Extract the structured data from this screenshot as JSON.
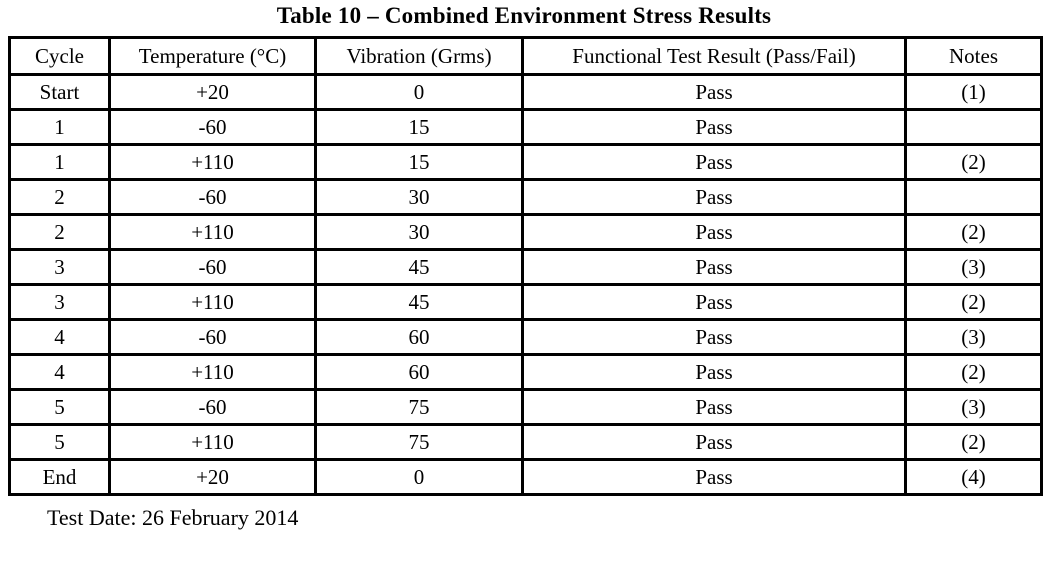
{
  "title": "Table 10 – Combined Environment Stress Results",
  "table": {
    "headers": [
      "Cycle",
      "Temperature (°C)",
      "Vibration (Grms)",
      "Functional Test Result (Pass/Fail)",
      "Notes"
    ],
    "rows": [
      {
        "cycle": "Start",
        "temperature": "+20",
        "vibration": "0",
        "result": "Pass",
        "notes": "(1)"
      },
      {
        "cycle": "1",
        "temperature": "-60",
        "vibration": "15",
        "result": "Pass",
        "notes": ""
      },
      {
        "cycle": "1",
        "temperature": "+110",
        "vibration": "15",
        "result": "Pass",
        "notes": "(2)"
      },
      {
        "cycle": "2",
        "temperature": "-60",
        "vibration": "30",
        "result": "Pass",
        "notes": ""
      },
      {
        "cycle": "2",
        "temperature": "+110",
        "vibration": "30",
        "result": "Pass",
        "notes": "(2)"
      },
      {
        "cycle": "3",
        "temperature": "-60",
        "vibration": "45",
        "result": "Pass",
        "notes": "(3)"
      },
      {
        "cycle": "3",
        "temperature": "+110",
        "vibration": "45",
        "result": "Pass",
        "notes": "(2)"
      },
      {
        "cycle": "4",
        "temperature": "-60",
        "vibration": "60",
        "result": "Pass",
        "notes": "(3)"
      },
      {
        "cycle": "4",
        "temperature": "+110",
        "vibration": "60",
        "result": "Pass",
        "notes": "(2)"
      },
      {
        "cycle": "5",
        "temperature": "-60",
        "vibration": "75",
        "result": "Pass",
        "notes": "(3)"
      },
      {
        "cycle": "5",
        "temperature": "+110",
        "vibration": "75",
        "result": "Pass",
        "notes": "(2)"
      },
      {
        "cycle": "End",
        "temperature": "+20",
        "vibration": "0",
        "result": "Pass",
        "notes": "(4)"
      }
    ]
  },
  "footer": {
    "test_date": "Test Date: 26 February 2014"
  },
  "colors": {
    "text": "#000000",
    "border": "#000000",
    "background": "#ffffff"
  }
}
